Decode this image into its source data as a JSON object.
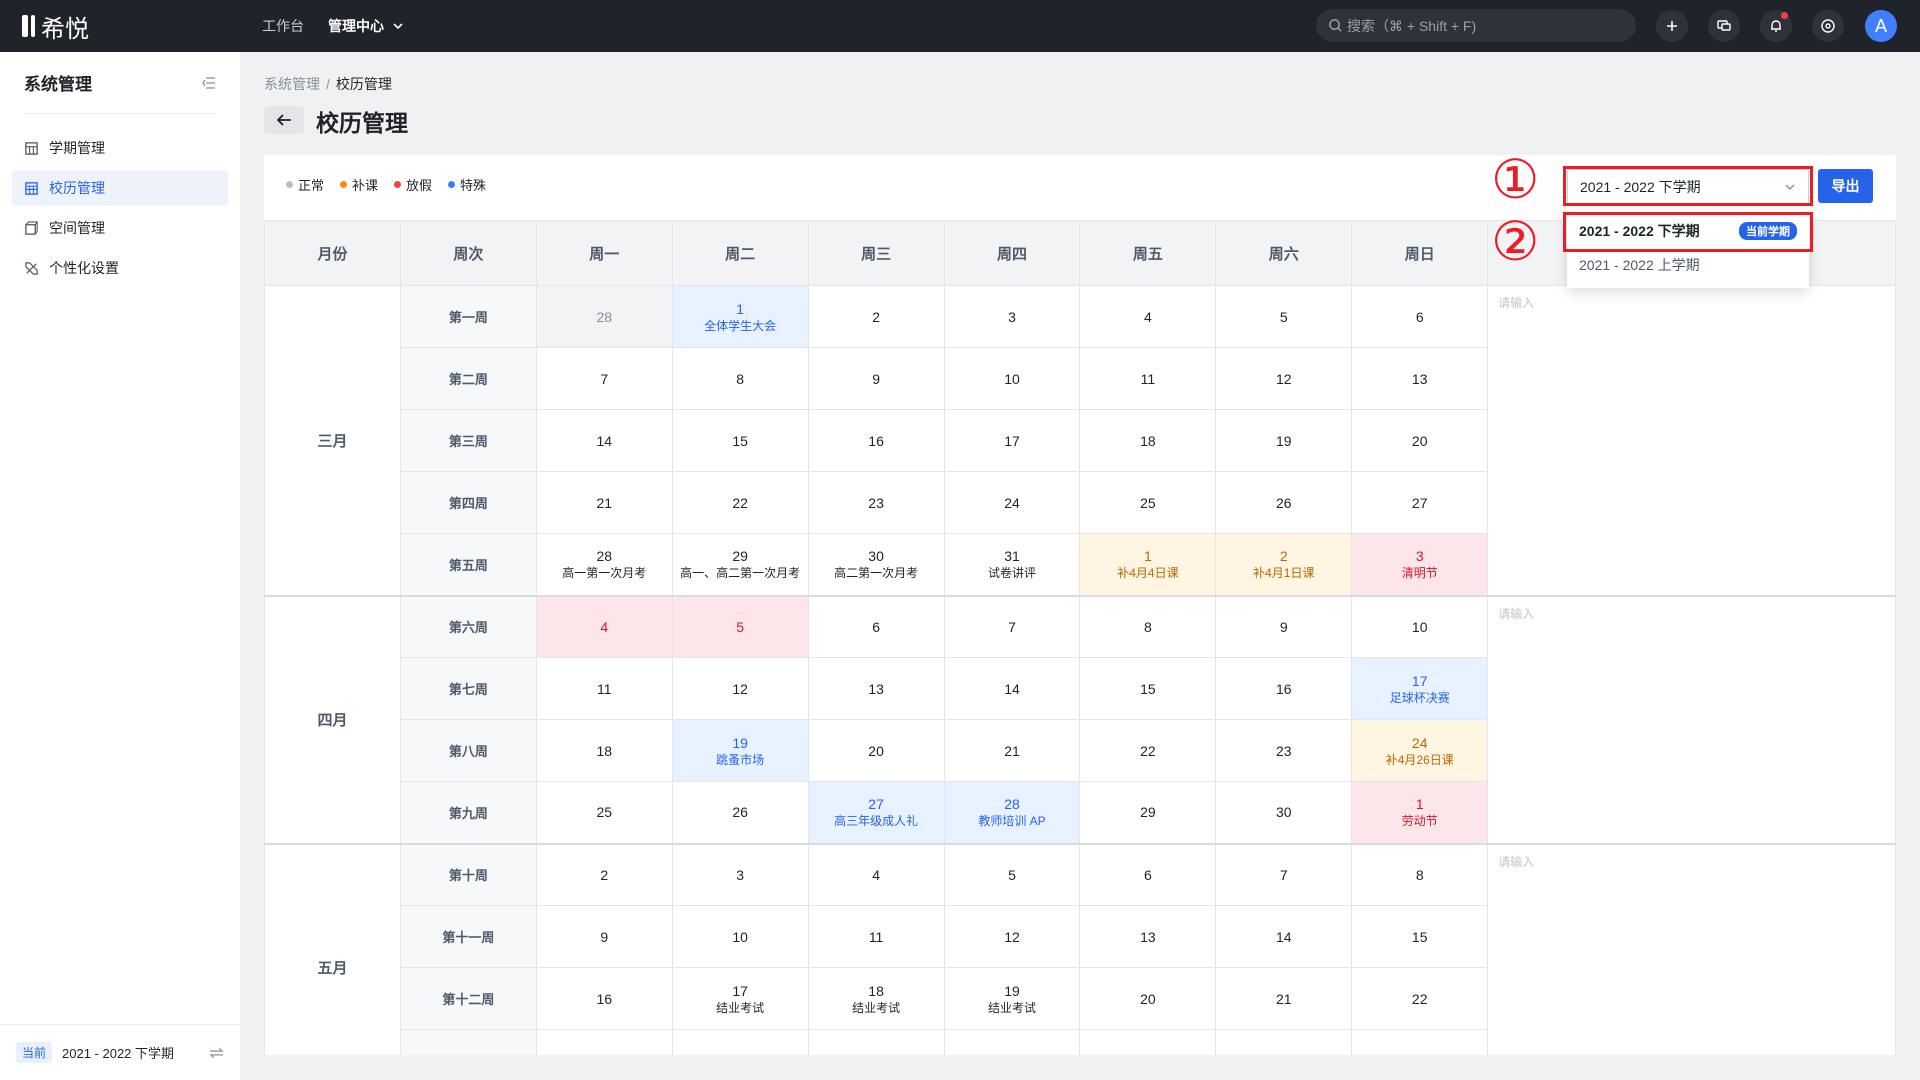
{
  "app": {
    "name": "希悦"
  },
  "topnav": {
    "workbench": "工作台",
    "admin_center": "管理中心",
    "search_placeholder": "搜索（⌘ + Shift + F)",
    "avatar_letter": "A"
  },
  "sidebar": {
    "title": "系统管理",
    "items": [
      {
        "label": "学期管理",
        "icon": "calendar-grid-icon",
        "active": false
      },
      {
        "label": "校历管理",
        "icon": "calendar-table-icon",
        "active": true
      },
      {
        "label": "空间管理",
        "icon": "cube-icon",
        "active": false
      },
      {
        "label": "个性化设置",
        "icon": "pencil-ruler-icon",
        "active": false
      }
    ],
    "footer": {
      "tag": "当前",
      "semester": "2021 - 2022 下学期"
    }
  },
  "breadcrumb": {
    "parent": "系统管理",
    "current": "校历管理"
  },
  "page": {
    "title": "校历管理"
  },
  "legend": [
    {
      "label": "正常",
      "color": "#b7bcc4"
    },
    {
      "label": "补课",
      "color": "#ff8a00"
    },
    {
      "label": "放假",
      "color": "#f53f3f"
    },
    {
      "label": "特殊",
      "color": "#3b82f6"
    }
  ],
  "semester_select": {
    "value": "2021 - 2022 下学期",
    "options": [
      {
        "label": "2021 - 2022 下学期",
        "badge": "当前学期",
        "selected": true
      },
      {
        "label": "2021 - 2022 上学期",
        "badge": "",
        "selected": false
      }
    ]
  },
  "export_label": "导出",
  "annotations": {
    "mark1": "①",
    "mark2": "②"
  },
  "table": {
    "headers": [
      "月份",
      "周次",
      "周一",
      "周二",
      "周三",
      "周四",
      "周五",
      "周六",
      "周日",
      ""
    ],
    "note_placeholder": "请输入",
    "months": [
      {
        "name": "三月",
        "weeks": [
          {
            "label": "第一周",
            "days": [
              {
                "d": "28",
                "t": "grey"
              },
              {
                "d": "1",
                "n": "全体学生大会",
                "t": "blue"
              },
              {
                "d": "2"
              },
              {
                "d": "3"
              },
              {
                "d": "4"
              },
              {
                "d": "5"
              },
              {
                "d": "6"
              }
            ]
          },
          {
            "label": "第二周",
            "days": [
              {
                "d": "7"
              },
              {
                "d": "8"
              },
              {
                "d": "9"
              },
              {
                "d": "10"
              },
              {
                "d": "11"
              },
              {
                "d": "12"
              },
              {
                "d": "13"
              }
            ]
          },
          {
            "label": "第三周",
            "days": [
              {
                "d": "14"
              },
              {
                "d": "15"
              },
              {
                "d": "16"
              },
              {
                "d": "17"
              },
              {
                "d": "18"
              },
              {
                "d": "19"
              },
              {
                "d": "20"
              }
            ]
          },
          {
            "label": "第四周",
            "days": [
              {
                "d": "21"
              },
              {
                "d": "22"
              },
              {
                "d": "23"
              },
              {
                "d": "24"
              },
              {
                "d": "25"
              },
              {
                "d": "26"
              },
              {
                "d": "27"
              }
            ]
          },
          {
            "label": "第五周",
            "days": [
              {
                "d": "28",
                "n": "高一第一次月考"
              },
              {
                "d": "29",
                "n": "高一、高二第一次月考"
              },
              {
                "d": "30",
                "n": "高二第一次月考"
              },
              {
                "d": "31",
                "n": "试卷讲评"
              },
              {
                "d": "1",
                "n": "补4月4日课",
                "t": "orange"
              },
              {
                "d": "2",
                "n": "补4月1日课",
                "t": "orange"
              },
              {
                "d": "3",
                "n": "清明节",
                "t": "red"
              }
            ]
          }
        ]
      },
      {
        "name": "四月",
        "weeks": [
          {
            "label": "第六周",
            "days": [
              {
                "d": "4",
                "t": "red"
              },
              {
                "d": "5",
                "t": "red"
              },
              {
                "d": "6"
              },
              {
                "d": "7"
              },
              {
                "d": "8"
              },
              {
                "d": "9"
              },
              {
                "d": "10"
              }
            ]
          },
          {
            "label": "第七周",
            "days": [
              {
                "d": "11"
              },
              {
                "d": "12"
              },
              {
                "d": "13"
              },
              {
                "d": "14"
              },
              {
                "d": "15"
              },
              {
                "d": "16"
              },
              {
                "d": "17",
                "n": "足球杯决赛",
                "t": "blue"
              }
            ]
          },
          {
            "label": "第八周",
            "days": [
              {
                "d": "18"
              },
              {
                "d": "19",
                "n": "跳蚤市场",
                "t": "blue"
              },
              {
                "d": "20"
              },
              {
                "d": "21"
              },
              {
                "d": "22"
              },
              {
                "d": "23"
              },
              {
                "d": "24",
                "n": "补4月26日课",
                "t": "orange"
              }
            ]
          },
          {
            "label": "第九周",
            "days": [
              {
                "d": "25"
              },
              {
                "d": "26"
              },
              {
                "d": "27",
                "n": "高三年级成人礼",
                "t": "blue"
              },
              {
                "d": "28",
                "n": "教师培训 AP",
                "t": "blue"
              },
              {
                "d": "29"
              },
              {
                "d": "30"
              },
              {
                "d": "1",
                "n": "劳动节",
                "t": "red"
              }
            ]
          }
        ]
      },
      {
        "name": "五月",
        "weeks": [
          {
            "label": "第十周",
            "days": [
              {
                "d": "2"
              },
              {
                "d": "3"
              },
              {
                "d": "4"
              },
              {
                "d": "5"
              },
              {
                "d": "6"
              },
              {
                "d": "7"
              },
              {
                "d": "8"
              }
            ]
          },
          {
            "label": "第十一周",
            "days": [
              {
                "d": "9"
              },
              {
                "d": "10"
              },
              {
                "d": "11"
              },
              {
                "d": "12"
              },
              {
                "d": "13"
              },
              {
                "d": "14"
              },
              {
                "d": "15"
              }
            ]
          },
          {
            "label": "第十二周",
            "days": [
              {
                "d": "16"
              },
              {
                "d": "17",
                "n": "结业考试"
              },
              {
                "d": "18",
                "n": "结业考试"
              },
              {
                "d": "19",
                "n": "结业考试"
              },
              {
                "d": "20"
              },
              {
                "d": "21"
              },
              {
                "d": "22"
              }
            ]
          },
          {
            "label": "",
            "days": [
              {
                "d": ""
              },
              {
                "d": ""
              },
              {
                "d": ""
              },
              {
                "d": ""
              },
              {
                "d": ""
              },
              {
                "d": ""
              },
              {
                "d": ""
              }
            ]
          }
        ]
      }
    ]
  }
}
